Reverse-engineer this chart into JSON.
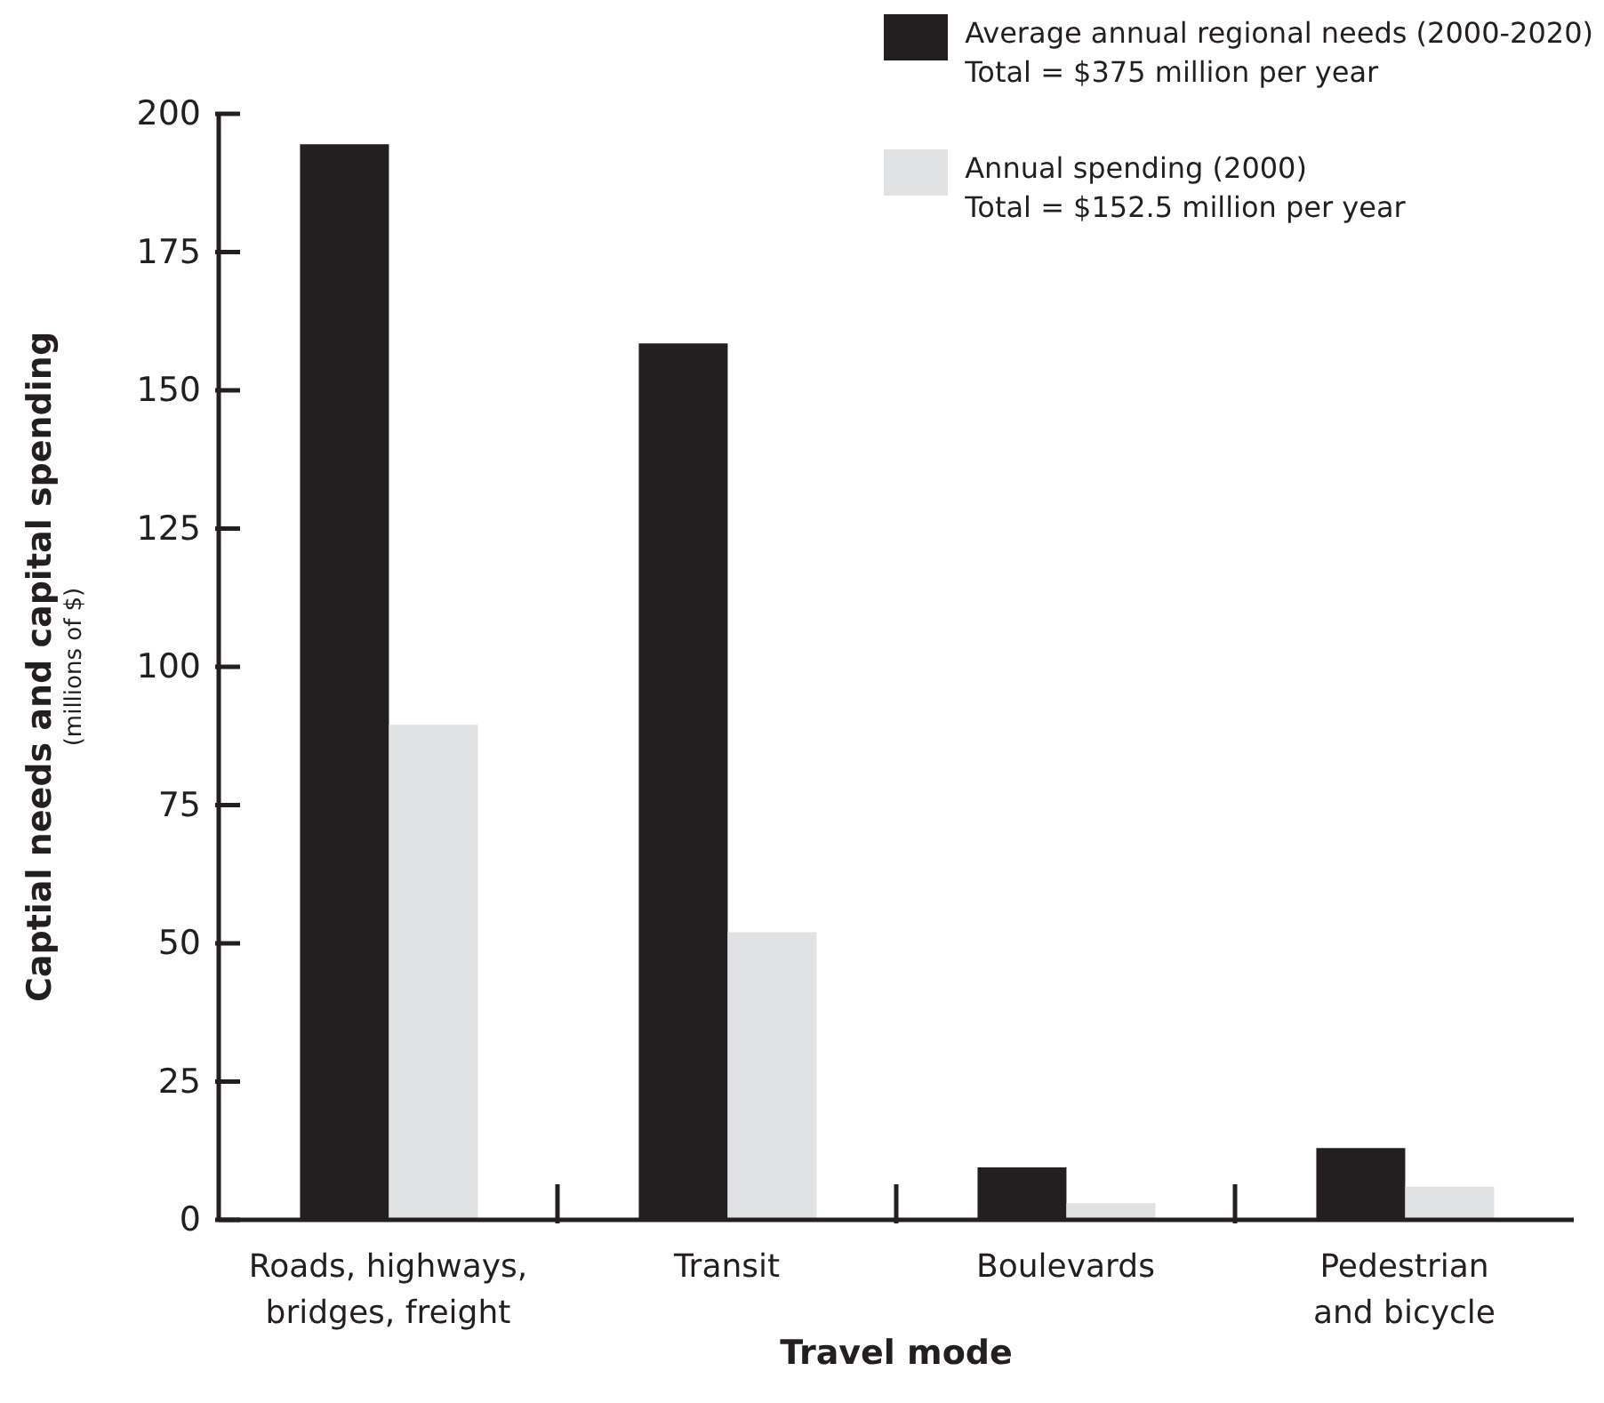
{
  "chart_data": {
    "type": "bar",
    "xlabel": "Travel mode",
    "ylabel": "Captial needs and capital spending",
    "categories": [
      "Roads, highways, bridges, freight",
      "Transit",
      "Boulevards",
      "Pedestrian and bicycle"
    ],
    "series": [
      {
        "name": "Average annual regional needs (2000-2020)",
        "color": "#231f20",
        "values": [
          194.5,
          158.5,
          9.5,
          13
        ]
      },
      {
        "name": "Annual spending (2000)",
        "color": "#e0e1e3",
        "values": [
          89.5,
          52,
          3,
          6
        ]
      }
    ],
    "ylim": [
      0,
      200
    ],
    "yticks": [
      0,
      25,
      50,
      75,
      100,
      125,
      150,
      175,
      200
    ],
    "legend": "top right",
    "annotations": [
      "Total = $375 million per year",
      "Total = $152.5 million per year",
      "(millions of $)"
    ]
  }
}
